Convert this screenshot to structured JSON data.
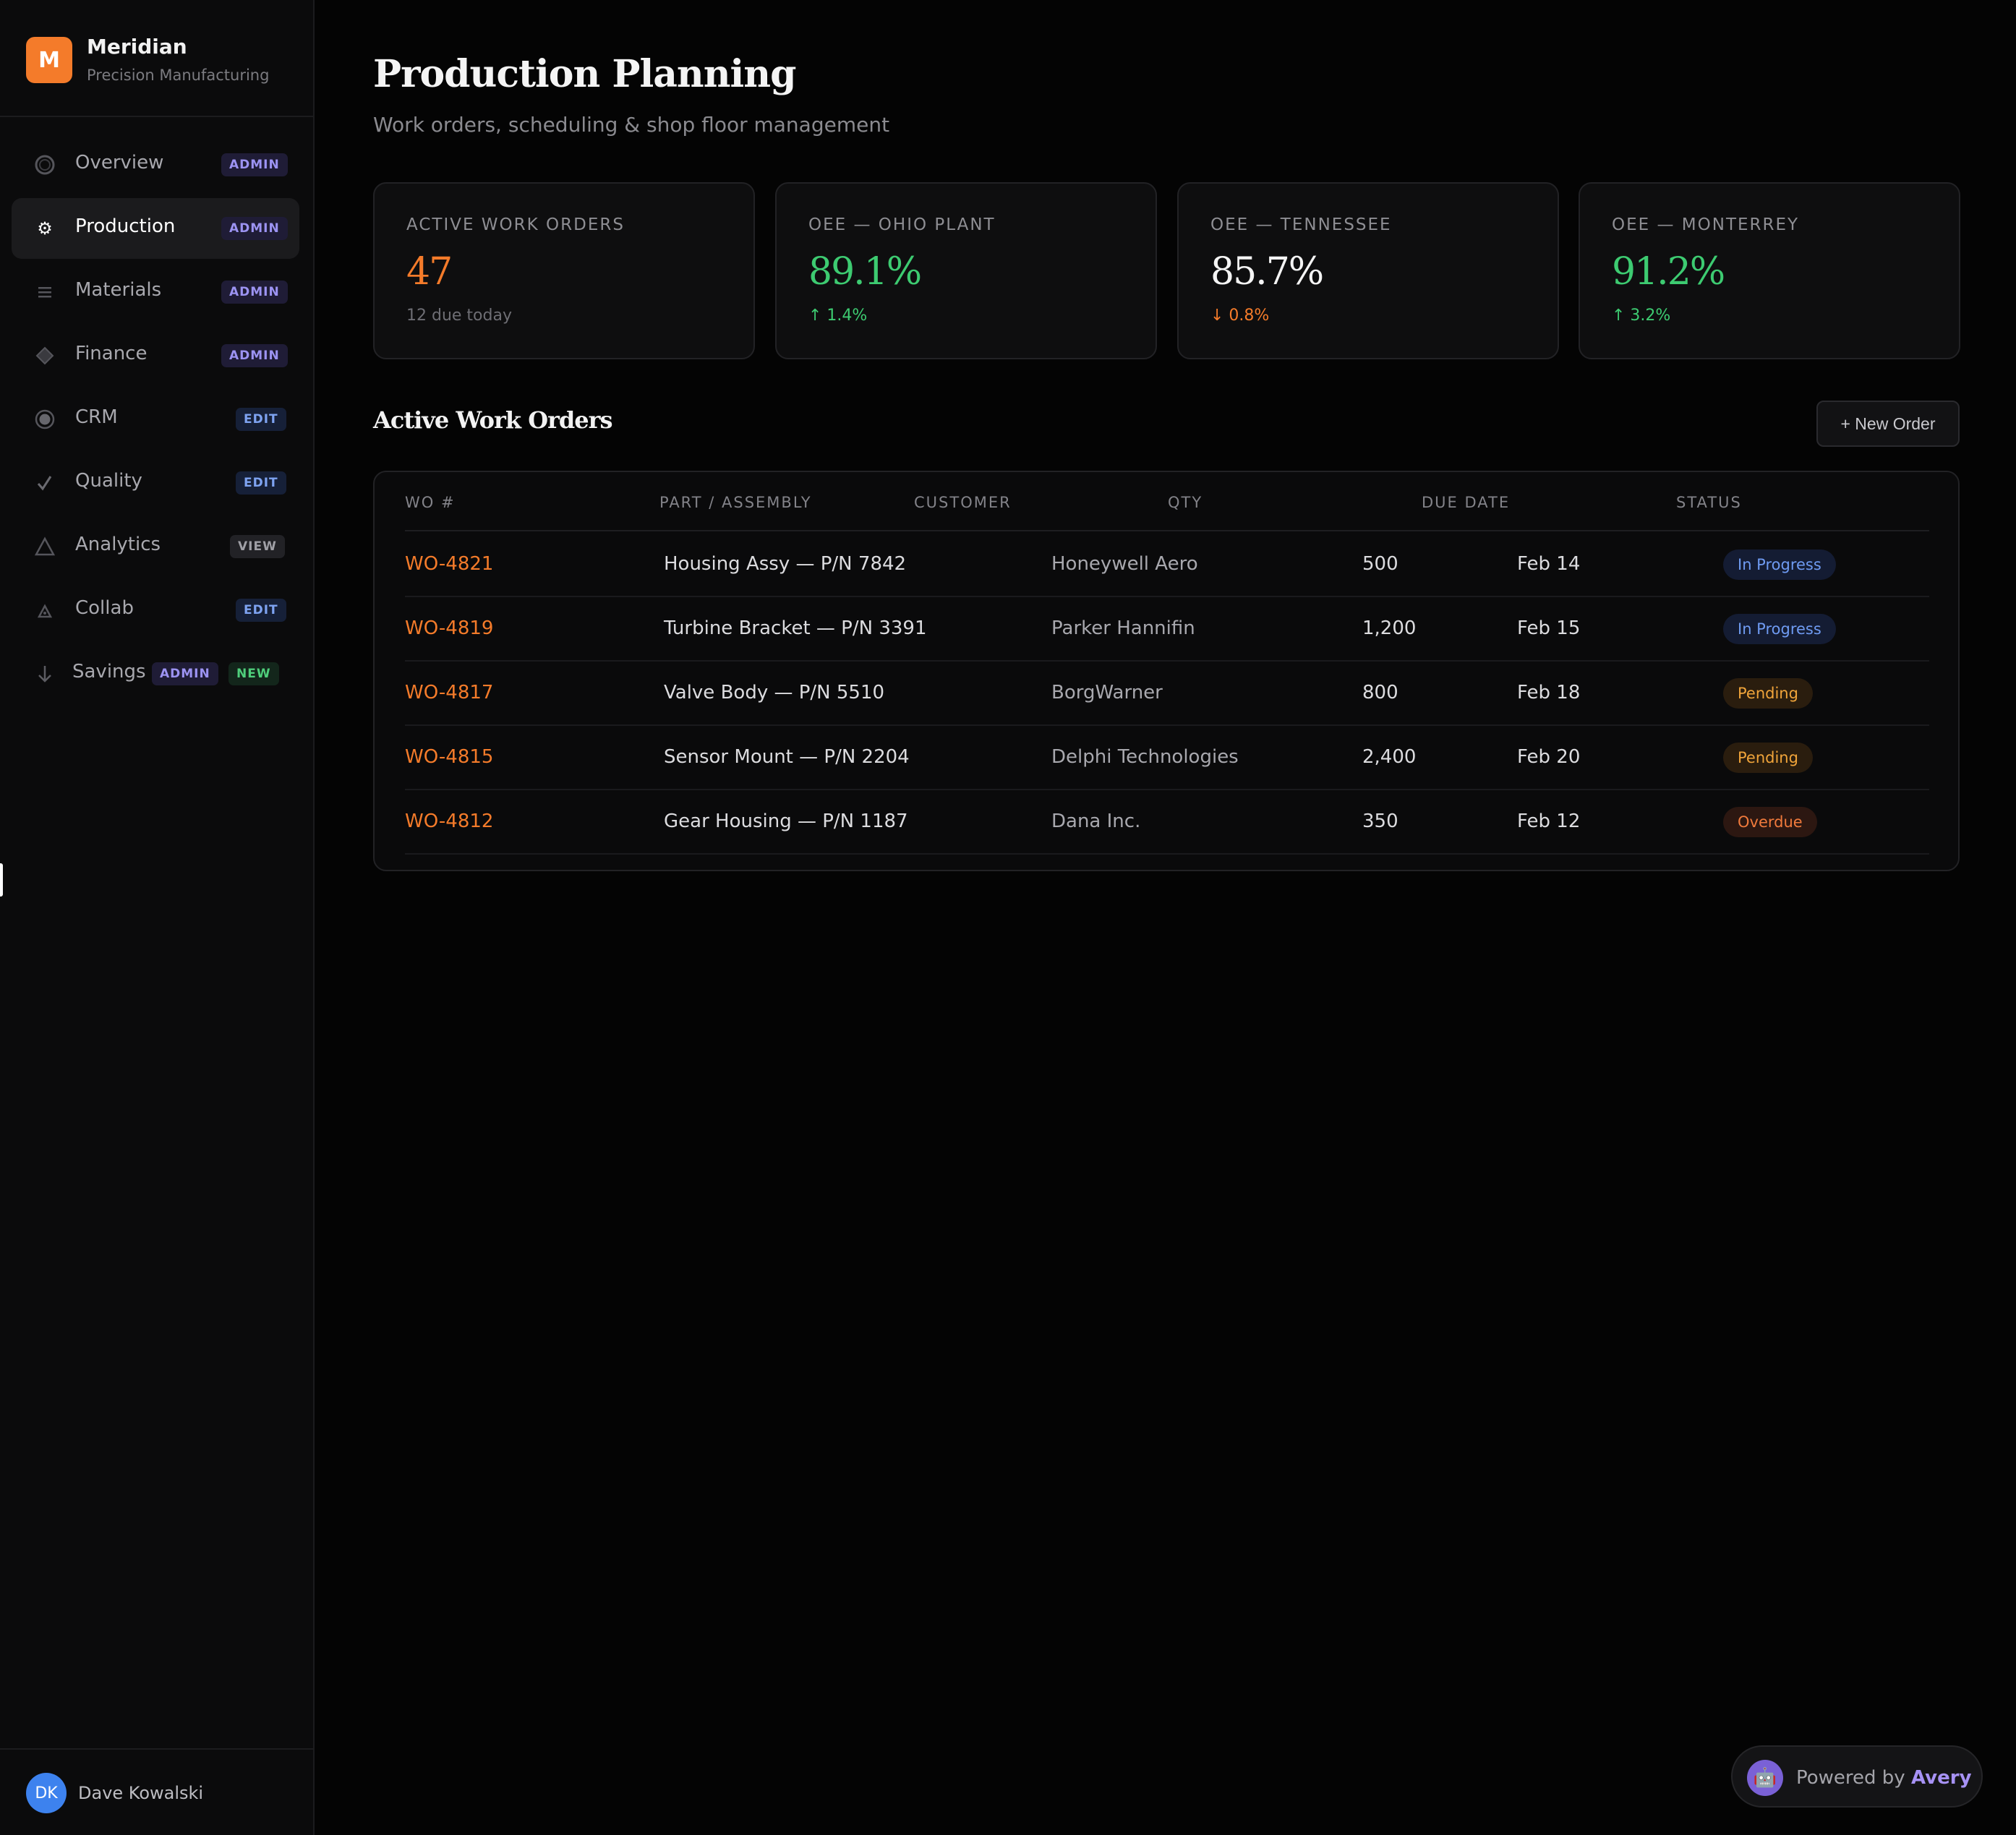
{
  "brand": {
    "logo_letter": "M",
    "name": "Meridian",
    "subtitle": "Precision Manufacturing",
    "accent": "#f47b2a"
  },
  "nav": {
    "items": [
      {
        "label": "Overview",
        "icon": "circle-outline-icon",
        "badges": [
          "ADMIN"
        ]
      },
      {
        "label": "Production",
        "icon": "gear-icon",
        "badges": [
          "ADMIN"
        ],
        "active": true
      },
      {
        "label": "Materials",
        "icon": "list-lines-icon",
        "badges": [
          "ADMIN"
        ]
      },
      {
        "label": "Finance",
        "icon": "diamond-icon",
        "badges": [
          "ADMIN"
        ]
      },
      {
        "label": "CRM",
        "icon": "filled-circle-icon",
        "badges": [
          "EDIT"
        ]
      },
      {
        "label": "Quality",
        "icon": "checkmark-icon",
        "badges": [
          "EDIT"
        ]
      },
      {
        "label": "Analytics",
        "icon": "triangle-outline-icon",
        "badges": [
          "VIEW"
        ]
      },
      {
        "label": "Collab",
        "icon": "small-triangle-icon",
        "badges": [
          "EDIT"
        ]
      },
      {
        "label": "Savings",
        "icon": "arrow-down-icon",
        "badges": [
          "ADMIN",
          "NEW"
        ]
      }
    ]
  },
  "user": {
    "initials": "DK",
    "name": "Dave Kowalski"
  },
  "header": {
    "title": "Production Planning",
    "subtitle": "Work orders, scheduling & shop floor management"
  },
  "kpis": [
    {
      "label": "ACTIVE WORK ORDERS",
      "value": "47",
      "foot": "12 due today",
      "trend": "none"
    },
    {
      "label": "OEE — OHIO PLANT",
      "value": "89.1%",
      "foot": "↑ 1.4%",
      "trend": "up"
    },
    {
      "label": "OEE — TENNESSEE",
      "value": "85.7%",
      "foot": "↓ 0.8%",
      "trend": "down"
    },
    {
      "label": "OEE — MONTERREY",
      "value": "91.2%",
      "foot": "↑ 3.2%",
      "trend": "up"
    }
  ],
  "orders": {
    "title": "Active Work Orders",
    "new_button": "+ New Order",
    "columns": [
      "WO #",
      "PART / ASSEMBLY",
      "CUSTOMER",
      "QTY",
      "DUE DATE",
      "STATUS"
    ],
    "rows": [
      {
        "wo": "WO-4821",
        "part": "Housing Assy — P/N 7842",
        "customer": "Honeywell Aero",
        "qty": "500",
        "due": "Feb 14",
        "status": "In Progress",
        "status_kind": "progress"
      },
      {
        "wo": "WO-4819",
        "part": "Turbine Bracket — P/N 3391",
        "customer": "Parker Hannifin",
        "qty": "1,200",
        "due": "Feb 15",
        "status": "In Progress",
        "status_kind": "progress"
      },
      {
        "wo": "WO-4817",
        "part": "Valve Body — P/N 5510",
        "customer": "BorgWarner",
        "qty": "800",
        "due": "Feb 18",
        "status": "Pending",
        "status_kind": "pending"
      },
      {
        "wo": "WO-4815",
        "part": "Sensor Mount — P/N 2204",
        "customer": "Delphi Technologies",
        "qty": "2,400",
        "due": "Feb 20",
        "status": "Pending",
        "status_kind": "pending"
      },
      {
        "wo": "WO-4812",
        "part": "Gear Housing — P/N 1187",
        "customer": "Dana Inc.",
        "qty": "350",
        "due": "Feb 12",
        "status": "Overdue",
        "status_kind": "overdue"
      }
    ]
  },
  "powered_by": {
    "prefix": "Powered by",
    "brand": "Avery",
    "icon": "robot-icon"
  }
}
